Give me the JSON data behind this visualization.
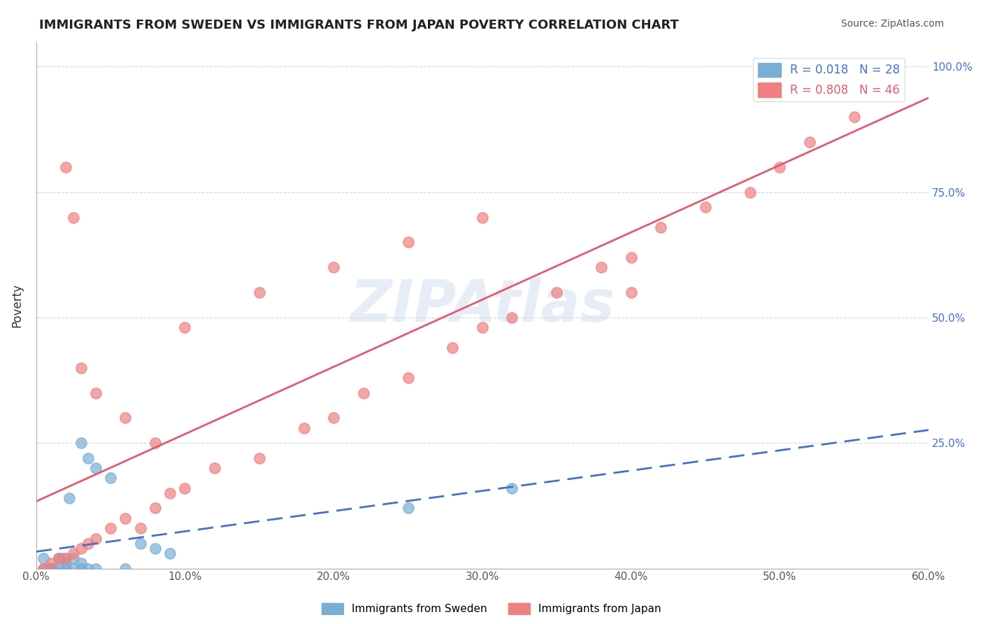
{
  "title": "IMMIGRANTS FROM SWEDEN VS IMMIGRANTS FROM JAPAN POVERTY CORRELATION CHART",
  "source": "Source: ZipAtlas.com",
  "ylabel": "Poverty",
  "xlabel_ticks": [
    "0.0%",
    "10.0%",
    "20.0%",
    "30.0%",
    "40.0%",
    "50.0%",
    "60.0%"
  ],
  "ylabel_ticks_right": [
    "100.0%",
    "75.0%",
    "50.0%",
    "25.0%"
  ],
  "xlim": [
    0.0,
    0.6
  ],
  "ylim": [
    0.0,
    1.05
  ],
  "sweden_R": 0.018,
  "sweden_N": 28,
  "japan_R": 0.808,
  "japan_N": 46,
  "sweden_color": "#7aaed6",
  "japan_color": "#f08080",
  "sweden_line_color": "#4472c4",
  "japan_line_color": "#e05a6e",
  "watermark_text": "ZIPAtlas",
  "watermark_color": "#d0ddf0",
  "legend_label_sweden": "Immigrants from Sweden",
  "legend_label_japan": "Immigrants from Japan",
  "sweden_scatter_x": [
    0.01,
    0.02,
    0.03,
    0.005,
    0.015,
    0.025,
    0.008,
    0.012,
    0.018,
    0.022,
    0.03,
    0.035,
    0.04,
    0.05,
    0.06,
    0.07,
    0.08,
    0.09,
    0.005,
    0.01,
    0.015,
    0.02,
    0.025,
    0.03,
    0.035,
    0.04,
    0.25,
    0.32
  ],
  "sweden_scatter_y": [
    0.0,
    0.01,
    0.01,
    0.02,
    0.02,
    0.02,
    0.0,
    0.0,
    0.02,
    0.14,
    0.25,
    0.22,
    0.2,
    0.18,
    0.0,
    0.05,
    0.04,
    0.03,
    0.0,
    0.0,
    0.0,
    0.0,
    0.0,
    0.0,
    0.0,
    0.0,
    0.12,
    0.16
  ],
  "japan_scatter_x": [
    0.005,
    0.01,
    0.015,
    0.02,
    0.025,
    0.03,
    0.035,
    0.04,
    0.05,
    0.06,
    0.07,
    0.08,
    0.09,
    0.1,
    0.12,
    0.15,
    0.18,
    0.2,
    0.22,
    0.25,
    0.28,
    0.3,
    0.32,
    0.35,
    0.38,
    0.4,
    0.42,
    0.45,
    0.48,
    0.5,
    0.52,
    0.55,
    0.02,
    0.025,
    0.03,
    0.04,
    0.06,
    0.08,
    0.1,
    0.15,
    0.2,
    0.25,
    0.3,
    0.4,
    0.5,
    0.58
  ],
  "japan_scatter_y": [
    0.0,
    0.01,
    0.02,
    0.02,
    0.03,
    0.04,
    0.05,
    0.06,
    0.08,
    0.1,
    0.08,
    0.12,
    0.15,
    0.16,
    0.2,
    0.22,
    0.28,
    0.3,
    0.35,
    0.38,
    0.44,
    0.48,
    0.5,
    0.55,
    0.6,
    0.62,
    0.68,
    0.72,
    0.75,
    0.8,
    0.85,
    0.9,
    0.8,
    0.7,
    0.4,
    0.35,
    0.3,
    0.25,
    0.48,
    0.55,
    0.6,
    0.65,
    0.7,
    0.55,
    0.95,
    0.98
  ]
}
